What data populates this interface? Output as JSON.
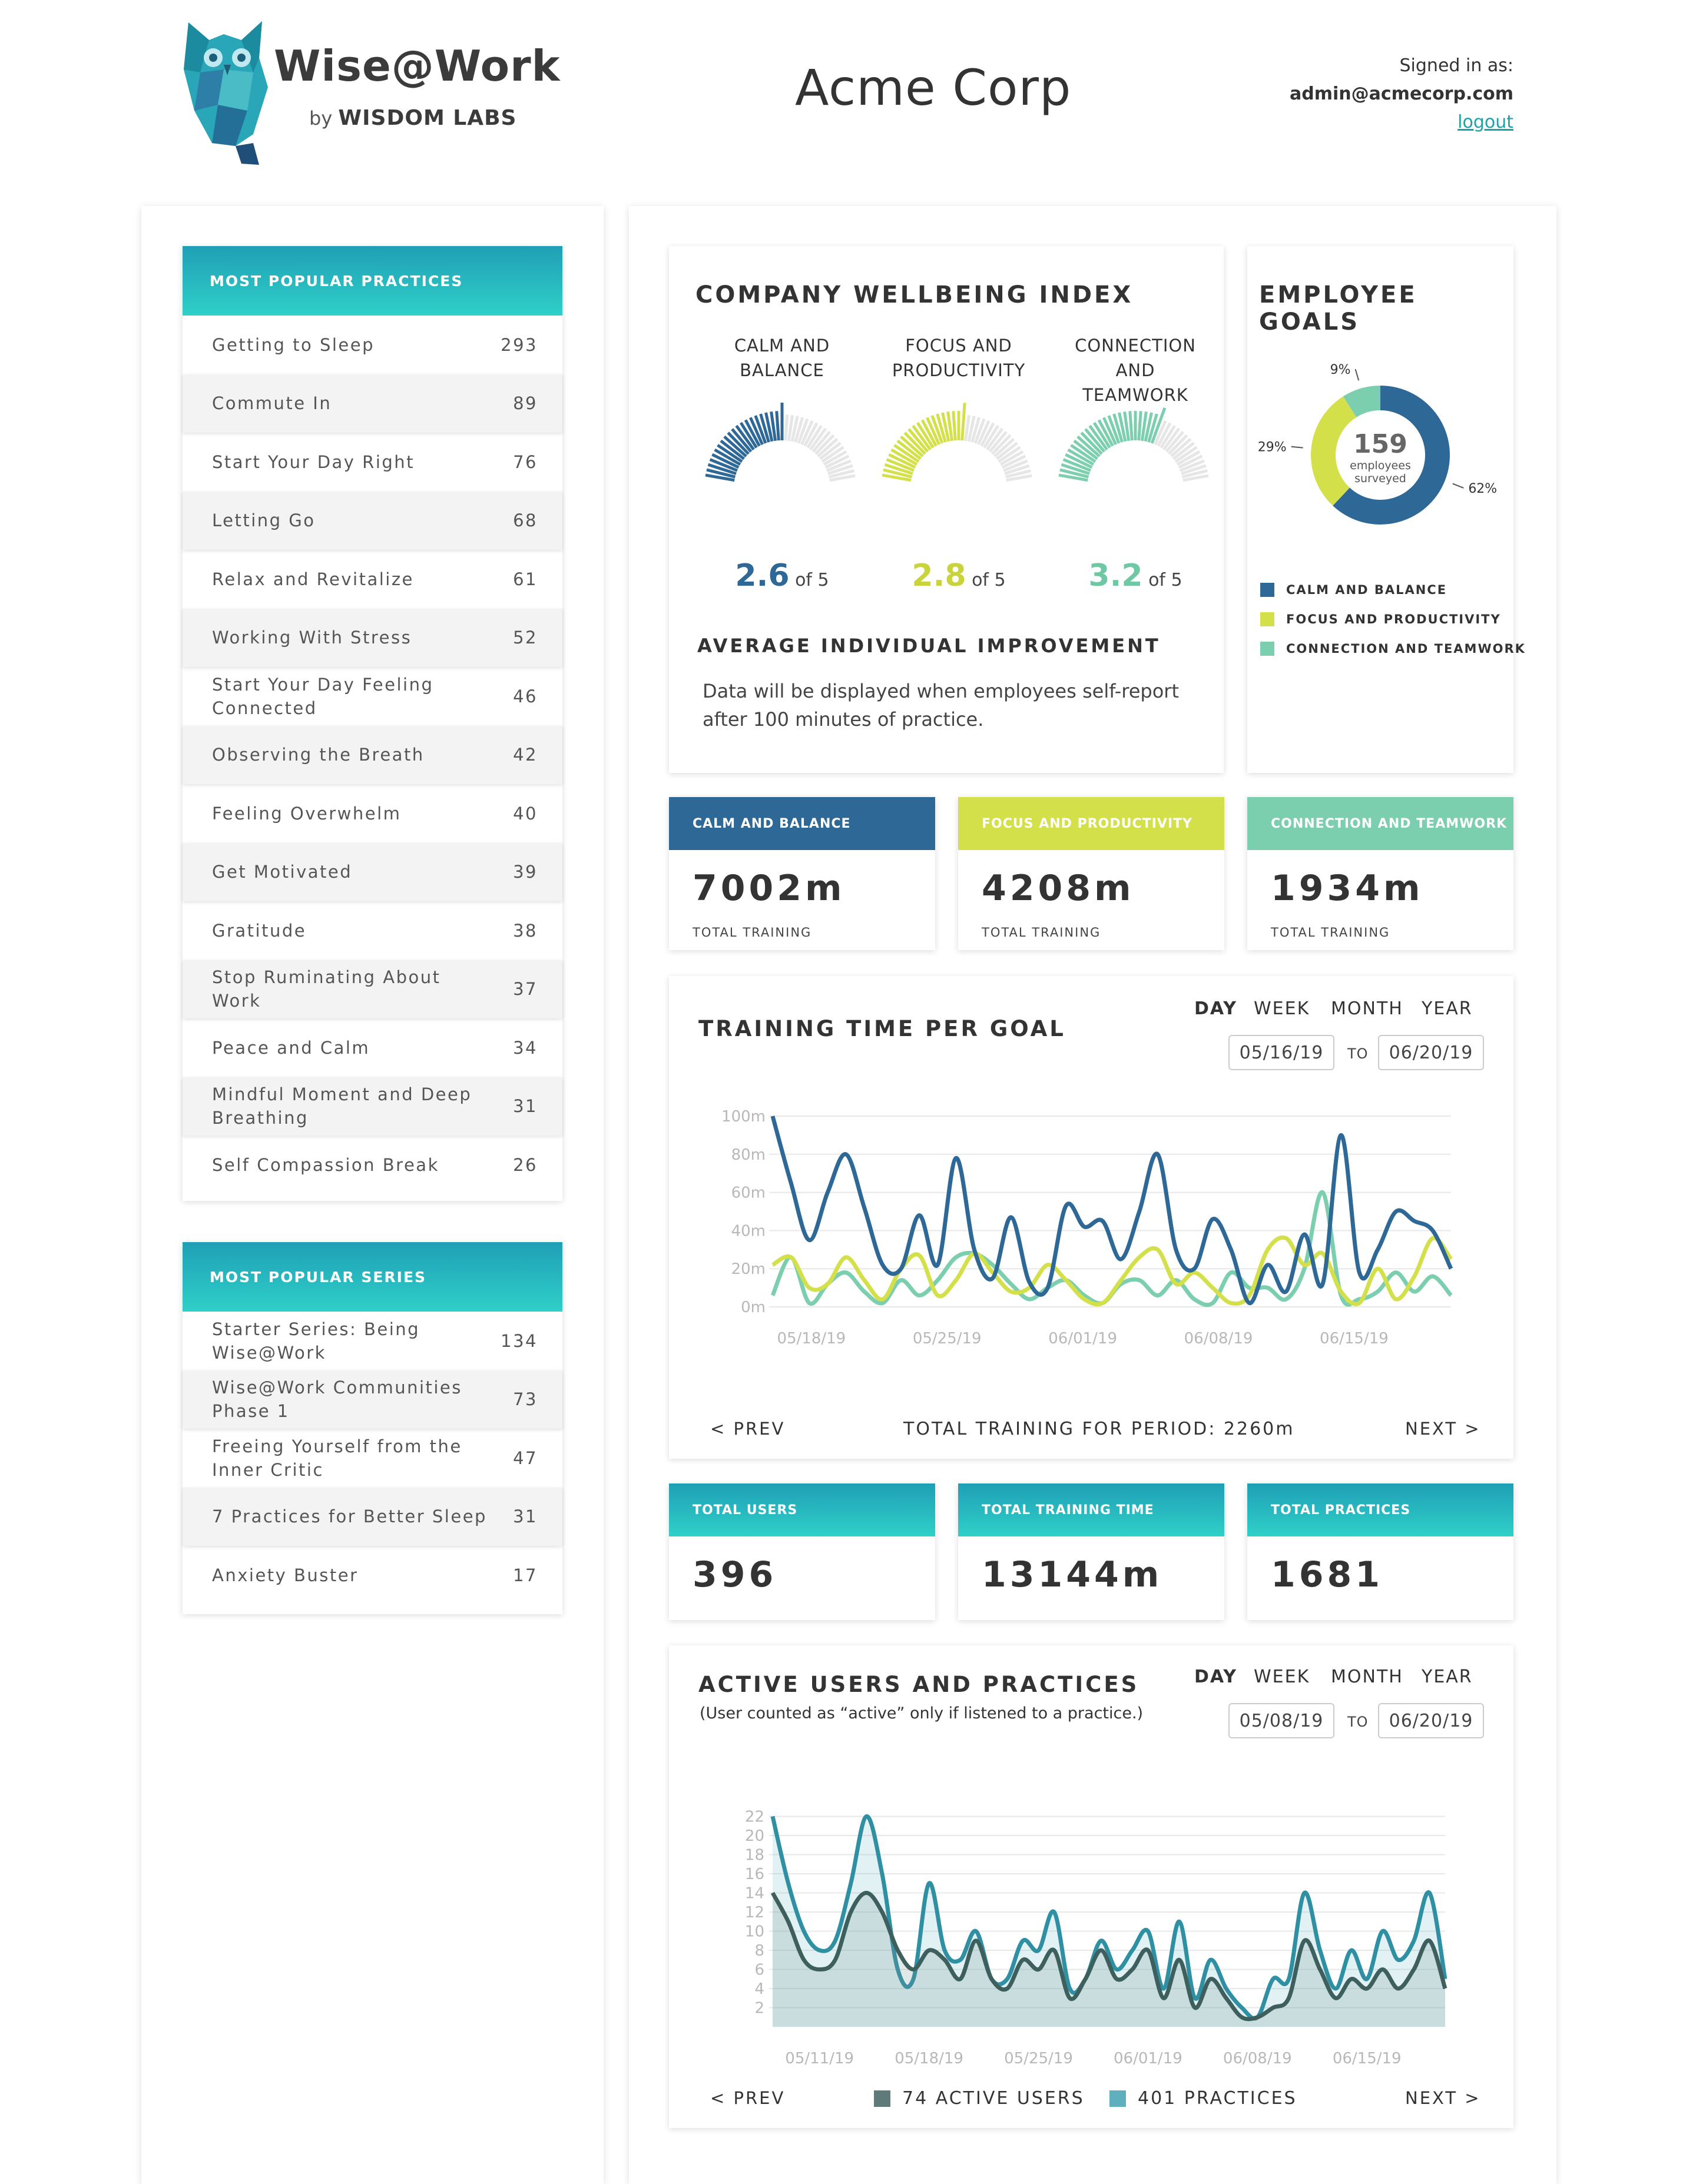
{
  "header": {
    "brand": "Wise@Work",
    "brand_by": "by",
    "brand_by_org": "WISDOM LABS",
    "company": "Acme Corp",
    "signed_in_label": "Signed in as:",
    "user_email": "admin@acmecorp.com",
    "logout_label": "logout"
  },
  "popular_practices": {
    "title": "MOST POPULAR PRACTICES",
    "items": [
      {
        "label": "Getting to Sleep",
        "count": "293"
      },
      {
        "label": "Commute In",
        "count": "89"
      },
      {
        "label": "Start Your Day Right",
        "count": "76"
      },
      {
        "label": "Letting Go",
        "count": "68"
      },
      {
        "label": "Relax and Revitalize",
        "count": "61"
      },
      {
        "label": "Working With Stress",
        "count": "52"
      },
      {
        "label": "Start Your Day Feeling Connected",
        "count": "46"
      },
      {
        "label": "Observing the Breath",
        "count": "42"
      },
      {
        "label": "Feeling Overwhelm",
        "count": "40"
      },
      {
        "label": "Get Motivated",
        "count": "39"
      },
      {
        "label": "Gratitude",
        "count": "38"
      },
      {
        "label": "Stop Ruminating About Work",
        "count": "37"
      },
      {
        "label": "Peace and Calm",
        "count": "34"
      },
      {
        "label": "Mindful Moment and Deep Breathing",
        "count": "31"
      },
      {
        "label": "Self Compassion Break",
        "count": "26"
      }
    ]
  },
  "popular_series": {
    "title": "MOST POPULAR SERIES",
    "items": [
      {
        "label": "Starter Series: Being Wise@Work",
        "count": "134"
      },
      {
        "label": "Wise@Work Communities Phase 1",
        "count": "73"
      },
      {
        "label": "Freeing Yourself from the Inner Critic",
        "count": "47"
      },
      {
        "label": "7 Practices for Better Sleep",
        "count": "31"
      },
      {
        "label": "Anxiety Buster",
        "count": "17"
      }
    ]
  },
  "wellbeing": {
    "title": "COMPANY WELLBEING INDEX",
    "of_label": "of 5",
    "gauges": [
      {
        "label_line1": "CALM AND",
        "label_line2": "BALANCE",
        "score": "2.6",
        "value": 2.6,
        "color": "#2e6896"
      },
      {
        "label_line1": "FOCUS AND",
        "label_line2": "PRODUCTIVITY",
        "score": "2.8",
        "value": 2.8,
        "color": "#d4e04a"
      },
      {
        "label_line1": "CONNECTION AND",
        "label_line2": "TEAMWORK",
        "score": "3.2",
        "value": 3.2,
        "color": "#7ccfae"
      }
    ],
    "improvement_title": "AVERAGE INDIVIDUAL IMPROVEMENT",
    "improvement_line1": "Data will be displayed when employees self-report",
    "improvement_line2": "after 100 minutes of practice."
  },
  "goals": {
    "title": "EMPLOYEE GOALS",
    "center_value": "159",
    "center_line1": "employees",
    "center_line2": "surveyed",
    "slices": [
      {
        "name": "CALM AND BALANCE",
        "pct": 62,
        "label": "62%",
        "color": "#2e6896"
      },
      {
        "name": "FOCUS AND PRODUCTIVITY",
        "pct": 29,
        "label": "29%",
        "color": "#d4e04a"
      },
      {
        "name": "CONNECTION AND TEAMWORK",
        "pct": 9,
        "label": "9%",
        "color": "#7ccfae"
      }
    ]
  },
  "training_cards": [
    {
      "title": "CALM AND BALANCE",
      "value": "7002m",
      "sub": "TOTAL TRAINING",
      "color": "#2e6896"
    },
    {
      "title": "FOCUS AND PRODUCTIVITY",
      "value": "4208m",
      "sub": "TOTAL TRAINING",
      "color": "#d4e04a"
    },
    {
      "title": "CONNECTION AND TEAMWORK",
      "value": "1934m",
      "sub": "TOTAL TRAINING",
      "color": "#7ccfae"
    }
  ],
  "training_chart": {
    "title": "TRAINING TIME PER GOAL",
    "periods": [
      "DAY",
      "WEEK",
      "MONTH",
      "YEAR"
    ],
    "selected_period": "DAY",
    "from_date": "05/16/19",
    "to_label": "TO",
    "to_date": "06/20/19",
    "prev_label": "< PREV",
    "next_label": "NEXT >",
    "total_label": "TOTAL TRAINING FOR PERIOD: 2260m"
  },
  "summary_cards": [
    {
      "title": "TOTAL USERS",
      "value": "396"
    },
    {
      "title": "TOTAL TRAINING TIME",
      "value": "13144m"
    },
    {
      "title": "TOTAL PRACTICES",
      "value": "1681"
    }
  ],
  "active_chart": {
    "title": "ACTIVE USERS AND PRACTICES",
    "subtitle": "(User counted as “active” only if listened to a practice.)",
    "periods": [
      "DAY",
      "WEEK",
      "MONTH",
      "YEAR"
    ],
    "selected_period": "DAY",
    "from_date": "05/08/19",
    "to_label": "TO",
    "to_date": "06/20/19",
    "prev_label": "< PREV",
    "next_label": "NEXT >",
    "legend_users": "74 ACTIVE USERS",
    "legend_practices": "401 PRACTICES"
  },
  "chart_data": [
    {
      "type": "line",
      "title": "TRAINING TIME PER GOAL",
      "x_tick_labels": [
        "05/18/19",
        "05/25/19",
        "06/01/19",
        "06/08/19",
        "06/15/19"
      ],
      "x_tick_days": [
        2,
        9,
        16,
        23,
        30
      ],
      "y_tick_labels": [
        "0m",
        "20m",
        "40m",
        "60m",
        "80m",
        "100m"
      ],
      "ylim": [
        0,
        100
      ],
      "x_range_days": [
        0,
        35
      ],
      "series": [
        {
          "name": "CALM AND BALANCE",
          "color": "#2e6896",
          "values": [
            100,
            65,
            35,
            60,
            80,
            52,
            22,
            20,
            48,
            22,
            78,
            30,
            15,
            47,
            13,
            10,
            53,
            42,
            45,
            25,
            50,
            80,
            30,
            20,
            46,
            30,
            2,
            22,
            8,
            38,
            12,
            90,
            18,
            30,
            50,
            45,
            40,
            20
          ]
        },
        {
          "name": "FOCUS AND PRODUCTIVITY",
          "color": "#d4e04a",
          "values": [
            22,
            26,
            10,
            12,
            26,
            14,
            4,
            20,
            27,
            6,
            14,
            28,
            18,
            8,
            10,
            22,
            14,
            4,
            2,
            14,
            26,
            30,
            12,
            18,
            10,
            2,
            6,
            30,
            36,
            22,
            28,
            8,
            2,
            20,
            4,
            16,
            36,
            25
          ]
        },
        {
          "name": "CONNECTION AND TEAMWORK",
          "color": "#7ccfae",
          "values": [
            6,
            26,
            2,
            12,
            18,
            8,
            2,
            14,
            6,
            14,
            26,
            28,
            22,
            12,
            4,
            10,
            14,
            6,
            2,
            12,
            14,
            6,
            14,
            4,
            2,
            18,
            10,
            10,
            4,
            20,
            60,
            6,
            4,
            8,
            18,
            8,
            16,
            6
          ]
        }
      ]
    },
    {
      "type": "area",
      "title": "ACTIVE USERS AND PRACTICES",
      "x_tick_labels": [
        "05/11/19",
        "05/18/19",
        "05/25/19",
        "06/01/19",
        "06/08/19",
        "06/15/19"
      ],
      "x_tick_days": [
        3,
        10,
        17,
        24,
        31,
        38
      ],
      "y_tick_labels": [
        "2",
        "4",
        "6",
        "8",
        "10",
        "12",
        "14",
        "16",
        "18",
        "20",
        "22"
      ],
      "ylim": [
        0,
        22
      ],
      "x_range_days": [
        0,
        43
      ],
      "series": [
        {
          "name": "PRACTICES",
          "color": "#2f8fa3",
          "values": [
            22,
            15,
            10,
            8,
            9,
            15,
            22,
            16,
            6,
            5,
            15,
            8,
            7,
            10,
            5,
            5,
            9,
            8,
            12,
            4,
            5,
            9,
            6,
            8,
            10,
            4,
            11,
            3,
            7,
            4,
            2,
            1,
            5,
            5,
            14,
            8,
            4,
            8,
            5,
            10,
            7,
            9,
            14,
            5
          ]
        },
        {
          "name": "ACTIVE USERS",
          "color": "#3d5f5e",
          "values": [
            14,
            11,
            7,
            6,
            7,
            12,
            14,
            12,
            8,
            6,
            8,
            7,
            5,
            9,
            5,
            4,
            7,
            6,
            8,
            3,
            5,
            8,
            5,
            6,
            8,
            3,
            7,
            2,
            5,
            3,
            1,
            1,
            2,
            3,
            9,
            6,
            3,
            5,
            4,
            6,
            4,
            6,
            9,
            4
          ]
        }
      ]
    }
  ]
}
